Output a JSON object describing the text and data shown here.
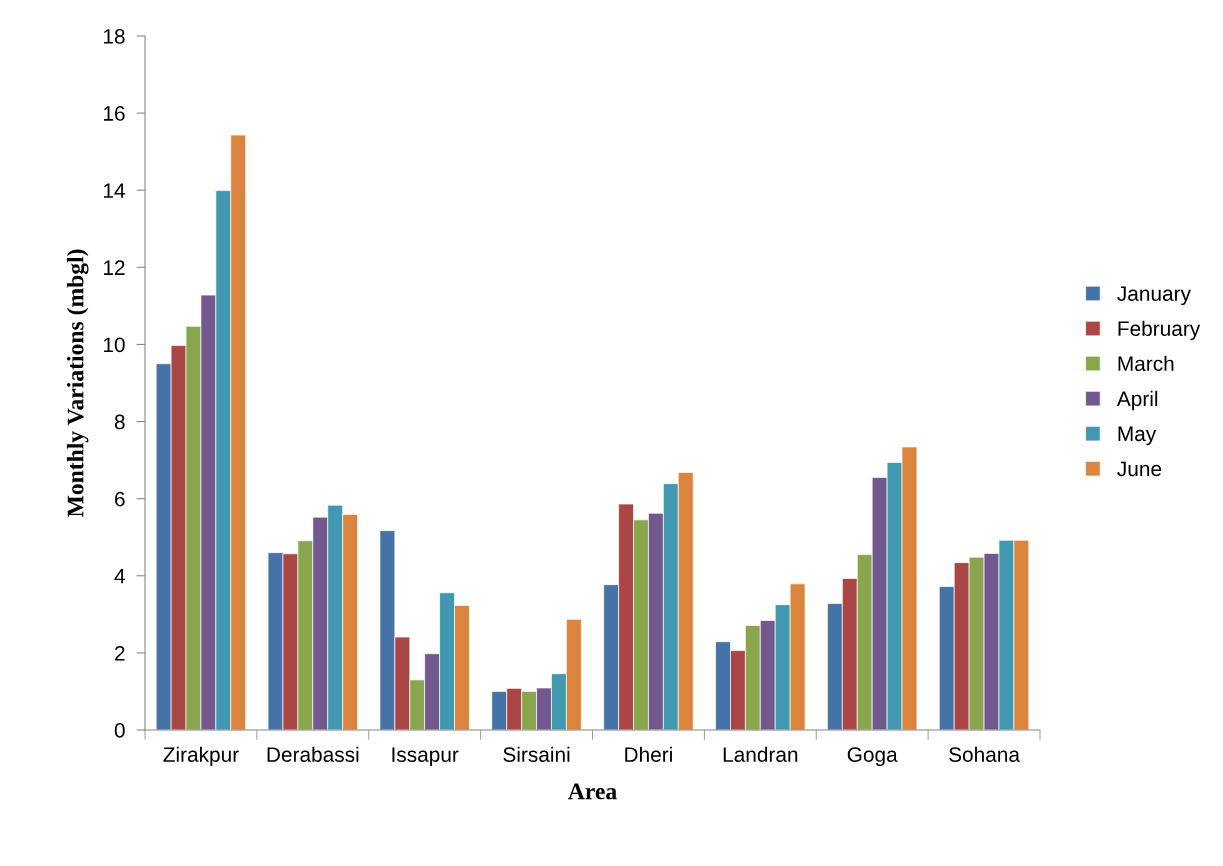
{
  "chart_data": {
    "type": "bar",
    "xlabel": "Area",
    "ylabel": "Monthly Variations (mbgl)",
    "categories": [
      "Zirakpur",
      "Derabassi",
      "Issapur",
      "Sirsaini",
      "Dheri",
      "Landran",
      "Goga",
      "Sohana"
    ],
    "series": [
      {
        "name": "January",
        "color": "#4572a7",
        "values": [
          9.5,
          4.6,
          5.17,
          1.0,
          3.77,
          2.29,
          3.28,
          3.72
        ]
      },
      {
        "name": "February",
        "color": "#aa4643",
        "values": [
          9.97,
          4.57,
          2.41,
          1.08,
          5.86,
          2.06,
          3.93,
          4.34
        ]
      },
      {
        "name": "March",
        "color": "#89a54e",
        "values": [
          10.47,
          4.91,
          1.3,
          1.0,
          5.45,
          2.71,
          4.55,
          4.48
        ]
      },
      {
        "name": "April",
        "color": "#71588f",
        "values": [
          11.28,
          5.52,
          1.98,
          1.09,
          5.62,
          2.84,
          6.55,
          4.58
        ]
      },
      {
        "name": "May",
        "color": "#4198af",
        "values": [
          13.99,
          5.83,
          3.56,
          1.46,
          6.39,
          3.25,
          6.94,
          4.92
        ]
      },
      {
        "name": "June",
        "color": "#db843d",
        "values": [
          15.43,
          5.59,
          3.23,
          2.87,
          6.68,
          3.79,
          7.34,
          4.92
        ]
      }
    ],
    "ylim": [
      0,
      18
    ],
    "yticks": [
      0,
      2,
      4,
      6,
      8,
      10,
      12,
      14,
      16,
      18
    ],
    "grid": false,
    "legend": "right"
  }
}
